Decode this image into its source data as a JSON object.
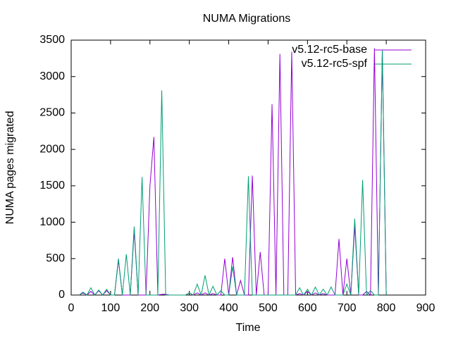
{
  "chart_data": {
    "type": "line",
    "title": "NUMA Migrations",
    "x_label": "Time",
    "y_label": "NUMA pages migrated",
    "x": [
      20,
      30,
      40,
      50,
      60,
      70,
      80,
      90,
      100,
      110,
      120,
      130,
      140,
      150,
      160,
      170,
      180,
      190,
      200,
      210,
      220,
      230,
      240,
      250,
      260,
      270,
      280,
      290,
      300,
      310,
      320,
      330,
      340,
      350,
      360,
      370,
      380,
      390,
      400,
      410,
      420,
      430,
      440,
      450,
      460,
      470,
      480,
      490,
      500,
      510,
      520,
      530,
      540,
      550,
      560,
      570,
      580,
      590,
      600,
      610,
      620,
      630,
      640,
      650,
      660,
      670,
      680,
      690,
      700,
      710,
      720,
      730,
      740,
      750,
      760,
      770,
      780,
      790,
      800
    ],
    "series": [
      {
        "name": "v5.12-rc5-base",
        "color": "#9400d3",
        "values": [
          0,
          30,
          0,
          50,
          0,
          60,
          0,
          60,
          0,
          0,
          480,
          0,
          0,
          0,
          880,
          0,
          0,
          0,
          1500,
          2170,
          0,
          10,
          10,
          0,
          0,
          0,
          0,
          0,
          30,
          0,
          30,
          0,
          30,
          0,
          20,
          0,
          0,
          500,
          0,
          520,
          0,
          200,
          0,
          0,
          1640,
          0,
          590,
          0,
          0,
          2620,
          0,
          3310,
          0,
          0,
          3340,
          0,
          20,
          0,
          50,
          0,
          30,
          0,
          20,
          0,
          0,
          0,
          770,
          0,
          500,
          0,
          950,
          0,
          0,
          50,
          0,
          3390,
          0,
          3350,
          0
        ]
      },
      {
        "name": "v5.12-rc5-spf",
        "color": "#009e73",
        "values": [
          0,
          40,
          0,
          100,
          0,
          70,
          0,
          80,
          0,
          0,
          500,
          0,
          560,
          0,
          940,
          0,
          1620,
          0,
          0,
          0,
          0,
          2810,
          0,
          0,
          0,
          0,
          0,
          0,
          30,
          0,
          150,
          0,
          270,
          0,
          120,
          0,
          60,
          0,
          0,
          390,
          0,
          0,
          0,
          1630,
          0,
          0,
          0,
          0,
          0,
          0,
          0,
          0,
          0,
          0,
          0,
          0,
          100,
          0,
          80,
          0,
          110,
          0,
          80,
          0,
          110,
          0,
          0,
          0,
          150,
          0,
          1050,
          0,
          1580,
          0,
          60,
          0,
          0,
          3370,
          0
        ]
      }
    ],
    "xlim": [
      0,
      900
    ],
    "xticks": [
      0,
      100,
      200,
      300,
      400,
      500,
      600,
      700,
      800,
      900
    ],
    "ylim": [
      0,
      3500
    ],
    "yticks": [
      0,
      500,
      1000,
      1500,
      2000,
      2500,
      3000,
      3500
    ],
    "legend": "top-right"
  }
}
